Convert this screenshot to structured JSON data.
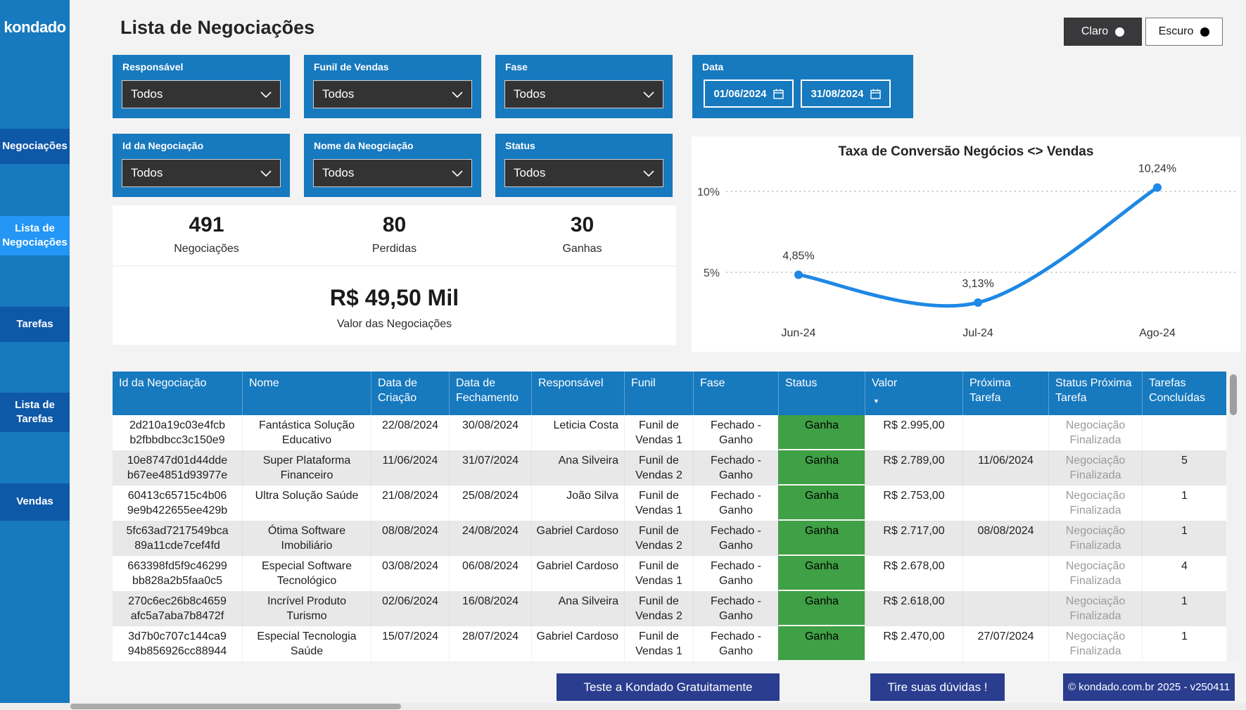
{
  "sidebar": {
    "logo": "kondado",
    "items": [
      {
        "label": "Negociações",
        "active": false
      },
      {
        "label": "Lista de\nNegociações",
        "active": true
      },
      {
        "label": "Tarefas",
        "active": false
      },
      {
        "label": "Lista de\nTarefas",
        "active": false
      },
      {
        "label": "Vendas",
        "active": false
      }
    ]
  },
  "header": {
    "title": "Lista de Negociações",
    "theme_light_label": "Claro",
    "theme_dark_label": "Escuro"
  },
  "filters": [
    {
      "label": "Responsável",
      "value": "Todos"
    },
    {
      "label": "Funil de Vendas",
      "value": "Todos"
    },
    {
      "label": "Fase",
      "value": "Todos"
    },
    {
      "label": "Id da Negociação",
      "value": "Todos"
    },
    {
      "label": "Nome da Neogciação",
      "value": "Todos"
    },
    {
      "label": "Status",
      "value": "Todos"
    }
  ],
  "date_filter": {
    "label": "Data",
    "start": "01/06/2024",
    "end": "31/08/2024"
  },
  "kpis": [
    {
      "value": "491",
      "label": "Negociações"
    },
    {
      "value": "80",
      "label": "Perdidas"
    },
    {
      "value": "30",
      "label": "Ganhas"
    }
  ],
  "total": {
    "value": "R$ 49,50 Mil",
    "label": "Valor das Negociações"
  },
  "chart_data": {
    "type": "line",
    "title": "Taxa de Conversão Negócios <> Vendas",
    "x": [
      "Jun-24",
      "Jul-24",
      "Ago-24"
    ],
    "values": [
      4.85,
      3.13,
      10.24
    ],
    "value_labels": [
      "4,85%",
      "3,13%",
      "10,24%"
    ],
    "yticks": [
      5,
      10
    ],
    "ytick_labels": [
      "5%",
      "10%"
    ],
    "ylim": [
      0,
      11.5
    ],
    "grid": "dotted-horizontal",
    "legend": false,
    "line_color": "#1E88E5"
  },
  "table": {
    "columns": [
      "Id da Negociação",
      "Nome",
      "Data de\nCriação",
      "Data de\nFechamento",
      "Responsável",
      "Funil",
      "Fase",
      "Status",
      "Valor",
      "Próxima\nTarefa",
      "Status Próxima\nTarefa",
      "Tarefas\nConcluídas"
    ],
    "sort": {
      "column": "Valor",
      "direction": "desc"
    },
    "status_color": "#3FA045",
    "rows": [
      [
        "2d210a19c03e4fcb\nb2fbbdbcc3c150e9",
        "Fantástica Solução\nEducativo",
        "22/08/2024",
        "30/08/2024",
        "Leticia Costa",
        "Funil de\nVendas 1",
        "Fechado -\nGanho",
        "Ganha",
        "R$ 2.995,00",
        "",
        "Negociação\nFinalizada",
        ""
      ],
      [
        "10e8747d01d44dde\nb67ee4851d93977e",
        "Super Plataforma\nFinanceiro",
        "11/06/2024",
        "31/07/2024",
        "Ana Silveira",
        "Funil de\nVendas 2",
        "Fechado -\nGanho",
        "Ganha",
        "R$ 2.789,00",
        "11/06/2024",
        "Negociação\nFinalizada",
        "5"
      ],
      [
        "60413c65715c4b06\n9e9b422655ee429b",
        "Ultra Solução Saúde",
        "21/08/2024",
        "25/08/2024",
        "João Silva",
        "Funil de\nVendas 1",
        "Fechado -\nGanho",
        "Ganha",
        "R$ 2.753,00",
        "",
        "Negociação\nFinalizada",
        "1"
      ],
      [
        "5fc63ad7217549bca\n89a11cde7cef4fd",
        "Ótima Software\nImobiliário",
        "08/08/2024",
        "24/08/2024",
        "Gabriel Cardoso",
        "Funil de\nVendas 2",
        "Fechado -\nGanho",
        "Ganha",
        "R$ 2.717,00",
        "08/08/2024",
        "Negociação\nFinalizada",
        "1"
      ],
      [
        "663398fd5f9c46299\nbb828a2b5faa0c5",
        "Especial Software\nTecnológico",
        "03/08/2024",
        "06/08/2024",
        "Gabriel Cardoso",
        "Funil de\nVendas 1",
        "Fechado -\nGanho",
        "Ganha",
        "R$ 2.678,00",
        "",
        "Negociação\nFinalizada",
        "4"
      ],
      [
        "270c6ec26b8c4659\nafc5a7aba7b8472f",
        "Incrível Produto\nTurismo",
        "02/06/2024",
        "16/08/2024",
        "Ana Silveira",
        "Funil de\nVendas 2",
        "Fechado -\nGanho",
        "Ganha",
        "R$ 2.618,00",
        "",
        "Negociação\nFinalizada",
        "1"
      ],
      [
        "3d7b0c707c144ca9\n94b856926cc88944",
        "Especial Tecnologia\nSaúde",
        "15/07/2024",
        "28/07/2024",
        "Gabriel Cardoso",
        "Funil de\nVendas 1",
        "Fechado -\nGanho",
        "Ganha",
        "R$ 2.470,00",
        "27/07/2024",
        "Negociação\nFinalizada",
        "1"
      ]
    ]
  },
  "footer": {
    "cta": "Teste a Kondado Gratuitamente",
    "help": "Tire suas dúvidas !",
    "copyright": "© kondado.com.br 2025 - v250411"
  },
  "colors": {
    "brand_blue": "#1779BE",
    "nav_dark_blue": "#0E58A8",
    "nav_active_blue": "#2496F5",
    "status_green": "#3FA045",
    "footer_navy": "#2A3D8F",
    "line_blue": "#1E88E5"
  }
}
